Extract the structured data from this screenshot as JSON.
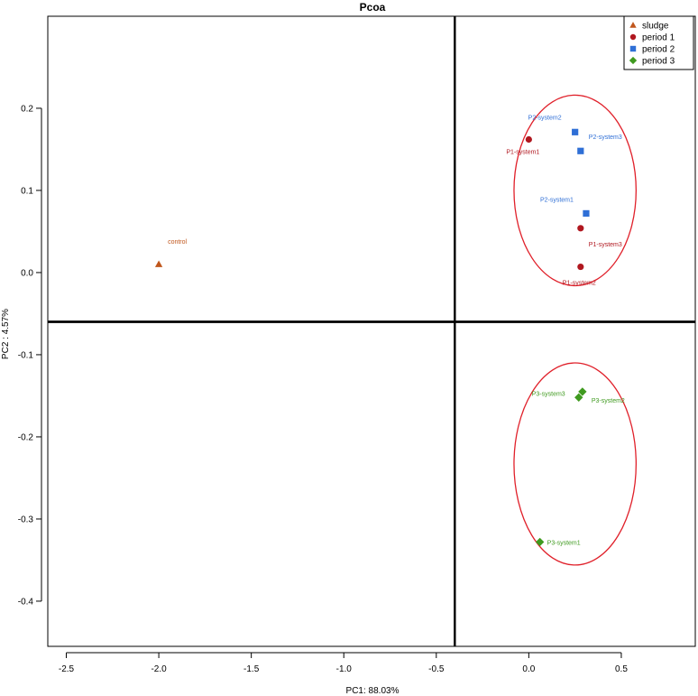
{
  "chart_data": {
    "type": "scatter",
    "title": "Pcoa",
    "xlabel": "PC1: 88.03%",
    "ylabel": "PC2 : 4.57%",
    "xlim": [
      -2.6,
      0.9
    ],
    "ylim": [
      -0.455,
      0.312
    ],
    "x_ticks": [
      -2.5,
      -2.0,
      -1.5,
      -1.0,
      -0.5,
      0.0,
      0.5
    ],
    "x_tick_labels": [
      "-2.5",
      "-2.0",
      "-1.5",
      "-1.0",
      "-0.5",
      "0.0",
      "0.5"
    ],
    "y_ticks": [
      0.2,
      0.1,
      0.0,
      -0.1,
      -0.2,
      -0.3,
      -0.4
    ],
    "y_tick_labels": [
      "0.2",
      "0.1",
      "0.0",
      "-0.1",
      "-0.2",
      "-0.3",
      "-0.4"
    ],
    "reference_lines": {
      "vertical_x": -0.4,
      "horizontal_y": -0.06
    },
    "legend": {
      "position": "top-right",
      "entries": [
        {
          "label": "sludge",
          "color": "#c0561c",
          "marker": "triangle"
        },
        {
          "label": "period 1",
          "color": "#b0171f",
          "marker": "circle"
        },
        {
          "label": "period 2",
          "color": "#2f6fd6",
          "marker": "square"
        },
        {
          "label": "period 3",
          "color": "#3f9a1f",
          "marker": "diamond"
        }
      ]
    },
    "series": [
      {
        "name": "sludge",
        "color": "#c0561c",
        "marker": "triangle",
        "points": [
          {
            "x": -2.0,
            "y": 0.01,
            "label": "control"
          }
        ]
      },
      {
        "name": "period 1",
        "color": "#b0171f",
        "marker": "circle",
        "points": [
          {
            "x": 0.0,
            "y": 0.162,
            "label": "P1-system1"
          },
          {
            "x": 0.28,
            "y": 0.054,
            "label": "P1-system3"
          },
          {
            "x": 0.28,
            "y": 0.007,
            "label": "P1-system2"
          }
        ]
      },
      {
        "name": "period 2",
        "color": "#2f6fd6",
        "marker": "square",
        "points": [
          {
            "x": 0.25,
            "y": 0.171,
            "label": "P2-system2"
          },
          {
            "x": 0.28,
            "y": 0.148,
            "label": "P2-system3"
          },
          {
            "x": 0.31,
            "y": 0.072,
            "label": "P2-system1"
          }
        ]
      },
      {
        "name": "period 3",
        "color": "#3f9a1f",
        "marker": "diamond",
        "points": [
          {
            "x": 0.29,
            "y": -0.145,
            "label": "P3-system2"
          },
          {
            "x": 0.27,
            "y": -0.152,
            "label": "P3-system3"
          },
          {
            "x": 0.06,
            "y": -0.328,
            "label": "P3-system1"
          }
        ]
      }
    ],
    "ellipses": [
      {
        "group": "period 1",
        "color": "#e0202a",
        "center": [
          0.25,
          0.1
        ],
        "radius_x": 0.33,
        "radius_y": 0.116
      },
      {
        "group": "period 3",
        "color": "#e0202a",
        "center": [
          0.25,
          -0.233
        ],
        "radius_x": 0.33,
        "radius_y": 0.123
      }
    ]
  }
}
